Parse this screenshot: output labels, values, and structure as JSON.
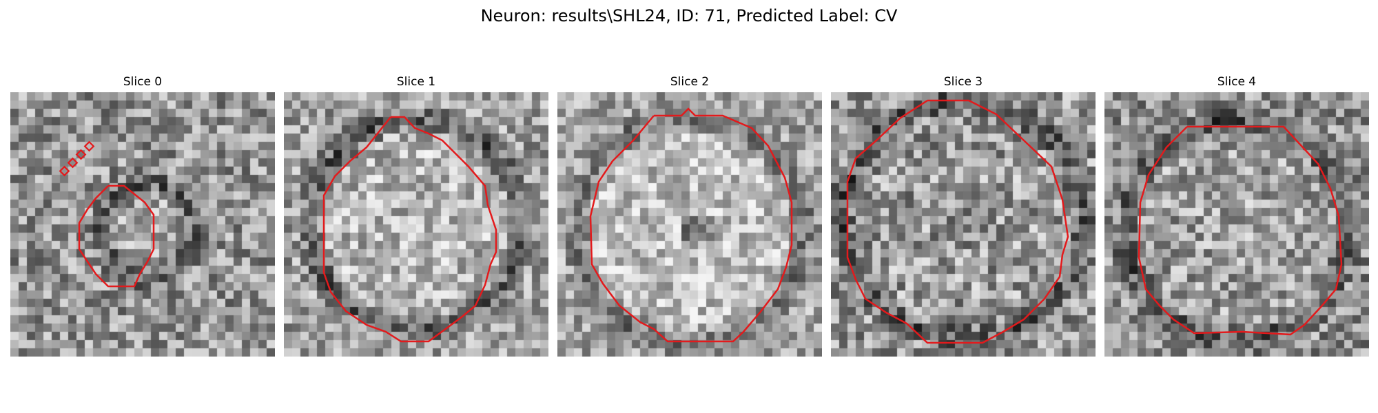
{
  "figure": {
    "title": "Neuron: results\\SHL24, ID: 71, Predicted Label: CV",
    "outline_color": "#e31a1c"
  },
  "panels": [
    {
      "title": "Slice 0"
    },
    {
      "title": "Slice 1"
    },
    {
      "title": "Slice 2"
    },
    {
      "title": "Slice 3"
    },
    {
      "title": "Slice 4"
    }
  ]
}
